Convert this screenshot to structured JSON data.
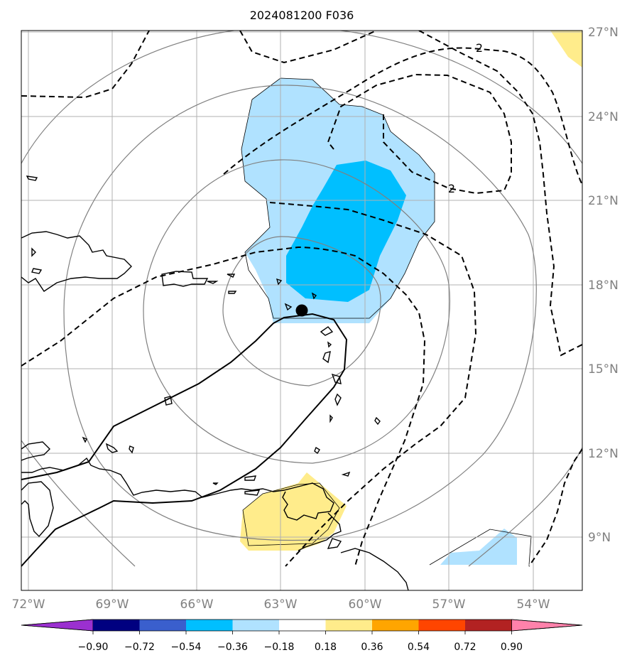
{
  "map": {
    "title": "2024081200 F036",
    "lat_ticks": [
      "27°N",
      "24°N",
      "21°N",
      "18°N",
      "15°N",
      "12°N",
      "9°N"
    ],
    "lon_ticks": [
      "72°W",
      "69°W",
      "66°W",
      "63°W",
      "60°W",
      "57°W",
      "54°W"
    ],
    "contour_labels": [
      "2",
      "2"
    ],
    "extent": {
      "lon_min": -72.0,
      "lon_max": -52.2,
      "lat_min": 7.2,
      "lat_max": 27.2
    },
    "center_marker": {
      "lon": -62.3,
      "lat": 17.1
    }
  },
  "colorbar": {
    "tick_labels": [
      "−0.90",
      "−0.72",
      "−0.54",
      "−0.36",
      "−0.18",
      "0.18",
      "0.36",
      "0.54",
      "0.72",
      "0.90"
    ],
    "colors": [
      "#9b30d0",
      "#000080",
      "#3a5fcd",
      "#00bfff",
      "#b0e2ff",
      "#ffffff",
      "#ffec8b",
      "#ffa500",
      "#ff4500",
      "#b22222",
      "#ff82ab"
    ]
  },
  "colors": {
    "light_blue_fill": "#b0e2ff",
    "blue_fill": "#00bfff",
    "yellow_fill": "#ffec8b",
    "grid": "#b0b0b0",
    "circle": "#808080"
  }
}
